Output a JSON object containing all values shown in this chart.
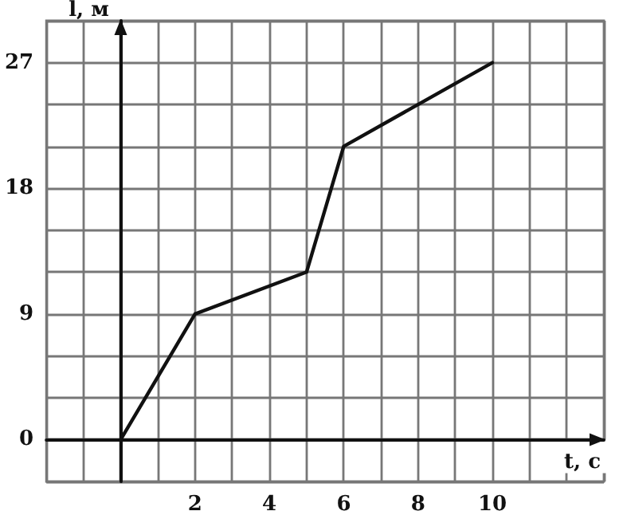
{
  "chart_data": {
    "type": "line",
    "xlabel": "t, с",
    "ylabel": "l, м",
    "x": [
      0,
      2,
      5,
      6,
      10
    ],
    "series": [
      {
        "color": "#111111",
        "values": [
          0,
          9,
          12,
          21,
          27
        ]
      }
    ],
    "xlim": [
      -2,
      13
    ],
    "ylim": [
      -3,
      30
    ],
    "xticks": [
      {
        "value": -2,
        "label": null
      },
      {
        "value": -1,
        "label": null
      },
      {
        "value": 0,
        "label": null
      },
      {
        "value": 1,
        "label": null
      },
      2,
      {
        "value": 3,
        "label": null
      },
      4,
      {
        "value": 5,
        "label": null
      },
      6,
      {
        "value": 7,
        "label": null
      },
      8,
      {
        "value": 9,
        "label": null
      },
      10,
      {
        "value": 11,
        "label": null
      },
      {
        "value": 12,
        "label": null
      },
      {
        "value": 13,
        "label": null
      }
    ],
    "yticks": [
      {
        "value": -3,
        "label": null
      },
      0,
      {
        "value": 3,
        "label": null
      },
      {
        "value": 6,
        "label": null
      },
      9,
      {
        "value": 12,
        "label": null
      },
      {
        "value": 15,
        "label": null
      },
      18,
      {
        "value": 21,
        "label": null
      },
      {
        "value": 24,
        "label": null
      },
      27,
      {
        "value": 30,
        "label": null
      }
    ],
    "grid": true,
    "marker": "none",
    "line_style": "solid"
  }
}
